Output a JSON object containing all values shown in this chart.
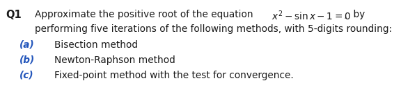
{
  "background_color": "#ffffff",
  "q_label": "Q1",
  "line1_prefix": "Approximate the positive root of the equation   ",
  "line1_eq": "$x^{2}-\\sin x-1=0$",
  "line1_suffix": " ,  by",
  "line2": "performing five iterations of the following methods, with 5-digits rounding:",
  "items": [
    {
      "label": "(a)",
      "text": "Bisection method"
    },
    {
      "label": "(b)",
      "text": "Newton-Raphson method"
    },
    {
      "label": "(c)",
      "text": "Fixed-point method with the test for convergence."
    }
  ],
  "font_size": 9.8,
  "label_color": "#2255bb",
  "text_color": "#1a1a1a",
  "q_label_fontsize": 10.5,
  "item_fontsize": 9.8,
  "figwidth": 5.76,
  "figheight": 1.43,
  "dpi": 100
}
